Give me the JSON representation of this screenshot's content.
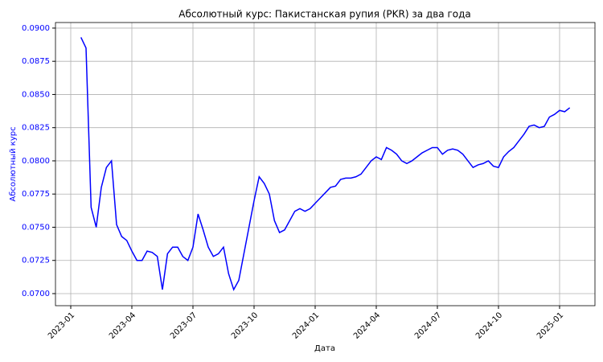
{
  "chart_data": {
    "type": "line",
    "title": "Абсолютный курс: Пакистанская рупия (PKR) за два года",
    "x_label": "Дата",
    "y_label": "Абсолютный курс",
    "color": "#0000ff",
    "grid": true,
    "categories": [
      "2023-01",
      null,
      null,
      null,
      null,
      null,
      null,
      null,
      null,
      null,
      null,
      null,
      "2023-04",
      null,
      null,
      null,
      null,
      null,
      null,
      null,
      null,
      null,
      null,
      null,
      "2023-07",
      null,
      null,
      null,
      null,
      null,
      null,
      null,
      null,
      null,
      null,
      null,
      "2023-10",
      null,
      null,
      null,
      null,
      null,
      null,
      null,
      null,
      null,
      null,
      null,
      "2024-01",
      null,
      null,
      null,
      null,
      null,
      null,
      null,
      null,
      null,
      null,
      null,
      "2024-04",
      null,
      null,
      null,
      null,
      null,
      null,
      null,
      null,
      null,
      null,
      null,
      "2024-07",
      null,
      null,
      null,
      null,
      null,
      null,
      null,
      null,
      null,
      null,
      null,
      "2024-10",
      null,
      null,
      null,
      null,
      null,
      null,
      null,
      null,
      null,
      null,
      null,
      "2025-01",
      null,
      null
    ],
    "values": [
      null,
      null,
      0.0893,
      0.0885,
      0.0765,
      0.075,
      0.078,
      0.0795,
      0.08,
      0.0752,
      0.0743,
      0.074,
      0.0732,
      0.0725,
      0.0725,
      0.0732,
      0.0731,
      0.0728,
      0.0703,
      0.073,
      0.0735,
      0.0735,
      0.0728,
      0.0725,
      0.0735,
      0.076,
      0.0748,
      0.0735,
      0.0728,
      0.073,
      0.0735,
      0.0715,
      0.0703,
      0.071,
      0.073,
      0.075,
      0.077,
      0.0788,
      0.0783,
      0.0775,
      0.0755,
      0.0746,
      0.0748,
      0.0755,
      0.0762,
      0.0764,
      0.0762,
      0.0764,
      0.0768,
      0.0772,
      0.0776,
      0.078,
      0.0781,
      0.0786,
      0.0787,
      0.0787,
      0.0788,
      0.079,
      0.0795,
      0.08,
      0.0803,
      0.0801,
      0.081,
      0.0808,
      0.0805,
      0.08,
      0.0798,
      0.08,
      0.0803,
      0.0806,
      0.0808,
      0.081,
      0.081,
      0.0805,
      0.0808,
      0.0809,
      0.0808,
      0.0805,
      0.08,
      0.0795,
      0.0797,
      0.0798,
      0.08,
      0.0796,
      0.0795,
      0.0803,
      0.0807,
      0.081,
      0.0815,
      0.082,
      0.0826,
      0.0827,
      0.0825,
      0.0826,
      0.0833,
      0.0835,
      0.0838,
      0.0837,
      0.084
    ],
    "ylim": [
      0.06909,
      0.09042
    ],
    "yticks": [
      {
        "value": 0.07,
        "label": "0.0700"
      },
      {
        "value": 0.0725,
        "label": "0.0725"
      },
      {
        "value": 0.075,
        "label": "0.0750"
      },
      {
        "value": 0.0775,
        "label": "0.0775"
      },
      {
        "value": 0.08,
        "label": "0.0800"
      },
      {
        "value": 0.0825,
        "label": "0.0825"
      },
      {
        "value": 0.085,
        "label": "0.0850"
      },
      {
        "value": 0.0875,
        "label": "0.0875"
      },
      {
        "value": 0.09,
        "label": "0.0900"
      }
    ]
  }
}
